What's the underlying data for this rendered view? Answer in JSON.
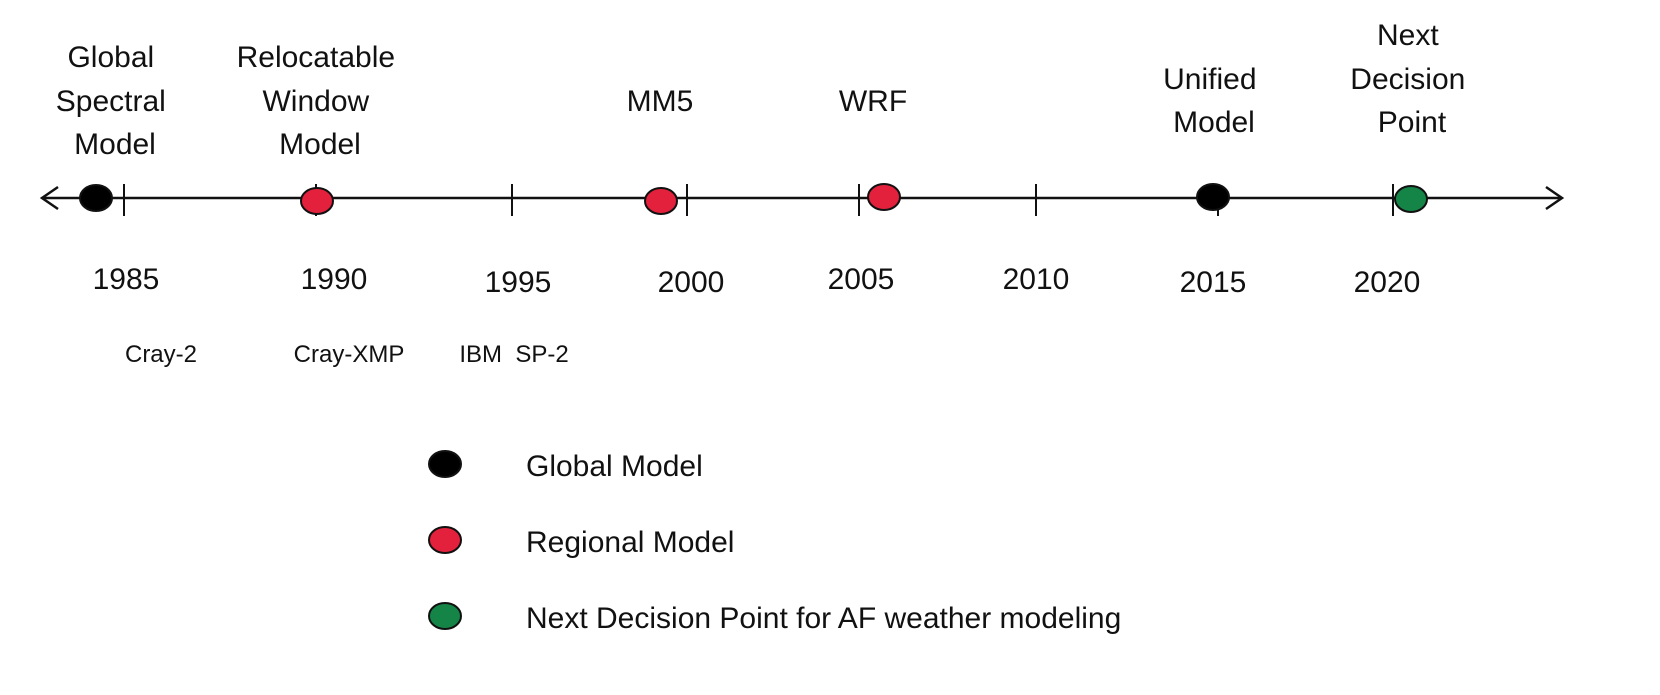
{
  "timeline": {
    "years": [
      "1985",
      "1990",
      "1995",
      "2000",
      "2005",
      "2010",
      "2015",
      "2020"
    ],
    "events": [
      {
        "lines": [
          "Global",
          "Spectral",
          "Model"
        ],
        "type": "global"
      },
      {
        "lines": [
          "Relocatable",
          "Window",
          "Model"
        ],
        "type": "regional"
      },
      {
        "lines": [
          "MM5"
        ],
        "type": "regional"
      },
      {
        "lines": [
          "WRF"
        ],
        "type": "regional"
      },
      {
        "lines": [
          "Unified",
          "Model"
        ],
        "type": "global"
      },
      {
        "lines": [
          "Next",
          "Decision",
          "Point"
        ],
        "type": "decision"
      }
    ],
    "computers": [
      "Cray-2",
      "Cray-XMP",
      "IBM  SP-2"
    ]
  },
  "legend": {
    "items": [
      {
        "label": "Global Model",
        "type": "global"
      },
      {
        "label": "Regional Model",
        "type": "regional"
      },
      {
        "label": "Next Decision Point for AF weather modeling",
        "type": "decision"
      }
    ]
  },
  "colors": {
    "global": "#000000",
    "regional": "#e3213c",
    "decision": "#158447",
    "line": "#111111"
  }
}
